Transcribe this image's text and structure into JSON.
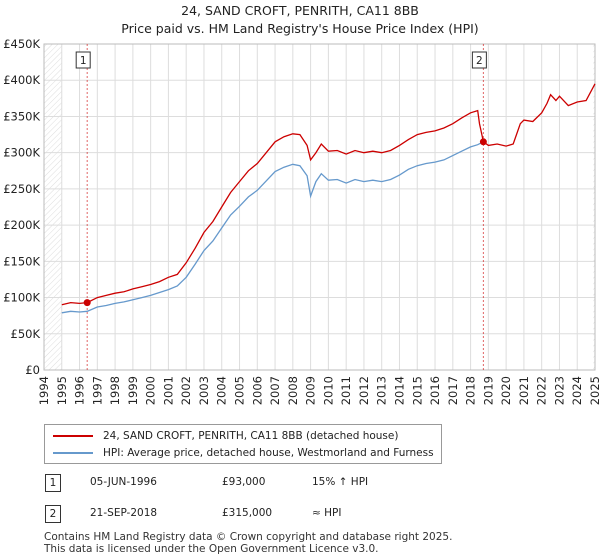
{
  "title_line1": "24, SAND CROFT, PENRITH, CA11 8BB",
  "title_line2": "Price paid vs. HM Land Registry's House Price Index (HPI)",
  "colors": {
    "property": "#cc0000",
    "hpi": "#6699cc",
    "grid": "#dddddd",
    "marker_line": "#cc0000"
  },
  "chart_data": {
    "type": "line",
    "title": "Price paid vs. HM Land Registry's House Price Index (HPI)",
    "xlabel": "",
    "ylabel": "",
    "xlim": [
      1994,
      2025
    ],
    "ylim": [
      0,
      450000
    ],
    "x_ticks": [
      1994,
      1995,
      1996,
      1997,
      1998,
      1999,
      2000,
      2001,
      2002,
      2003,
      2004,
      2005,
      2006,
      2007,
      2008,
      2009,
      2010,
      2011,
      2012,
      2013,
      2014,
      2015,
      2016,
      2017,
      2018,
      2019,
      2020,
      2021,
      2022,
      2023,
      2024,
      2025
    ],
    "y_ticks": [
      0,
      50000,
      100000,
      150000,
      200000,
      250000,
      300000,
      350000,
      400000,
      450000
    ],
    "y_tick_labels": [
      "£0",
      "£50K",
      "£100K",
      "£150K",
      "£200K",
      "£250K",
      "£300K",
      "£350K",
      "£400K",
      "£450K"
    ],
    "series": [
      {
        "name": "24, SAND CROFT, PENRITH, CA11 8BB (detached house)",
        "color": "#cc0000",
        "x": [
          1995.0,
          1995.5,
          1996.0,
          1996.43,
          1997.0,
          1997.5,
          1998.0,
          1998.5,
          1999.0,
          1999.5,
          2000.0,
          2000.5,
          2001.0,
          2001.5,
          2002.0,
          2002.5,
          2003.0,
          2003.5,
          2004.0,
          2004.5,
          2005.0,
          2005.5,
          2006.0,
          2006.5,
          2007.0,
          2007.5,
          2008.0,
          2008.4,
          2008.8,
          2009.0,
          2009.3,
          2009.6,
          2010.0,
          2010.5,
          2011.0,
          2011.5,
          2012.0,
          2012.5,
          2013.0,
          2013.5,
          2014.0,
          2014.5,
          2015.0,
          2015.5,
          2016.0,
          2016.5,
          2017.0,
          2017.5,
          2018.0,
          2018.4,
          2018.5,
          2018.72,
          2019.0,
          2019.5,
          2020.0,
          2020.4,
          2020.8,
          2021.0,
          2021.5,
          2022.0,
          2022.3,
          2022.5,
          2022.8,
          2023.0,
          2023.5,
          2024.0,
          2024.5,
          2025.0
        ],
        "y": [
          90000,
          93000,
          92000,
          93000,
          100000,
          103000,
          106000,
          108000,
          112000,
          115000,
          118000,
          122000,
          128000,
          132000,
          148000,
          168000,
          190000,
          205000,
          225000,
          245000,
          260000,
          275000,
          285000,
          300000,
          315000,
          322000,
          326000,
          325000,
          310000,
          290000,
          300000,
          312000,
          302000,
          303000,
          298000,
          303000,
          300000,
          302000,
          300000,
          303000,
          310000,
          318000,
          325000,
          328000,
          330000,
          334000,
          340000,
          348000,
          355000,
          358000,
          340000,
          315000,
          310000,
          312000,
          309000,
          312000,
          340000,
          345000,
          343000,
          355000,
          368000,
          380000,
          372000,
          378000,
          365000,
          370000,
          372000,
          395000
        ]
      },
      {
        "name": "HPI: Average price, detached house, Westmorland and Furness",
        "color": "#6699cc",
        "x": [
          1995.0,
          1995.5,
          1996.0,
          1996.43,
          1997.0,
          1997.5,
          1998.0,
          1998.5,
          1999.0,
          1999.5,
          2000.0,
          2000.5,
          2001.0,
          2001.5,
          2002.0,
          2002.5,
          2003.0,
          2003.5,
          2004.0,
          2004.5,
          2005.0,
          2005.5,
          2006.0,
          2006.5,
          2007.0,
          2007.5,
          2008.0,
          2008.4,
          2008.8,
          2009.0,
          2009.3,
          2009.6,
          2010.0,
          2010.5,
          2011.0,
          2011.5,
          2012.0,
          2012.5,
          2013.0,
          2013.5,
          2014.0,
          2014.5,
          2015.0,
          2015.5,
          2016.0,
          2016.5,
          2017.0,
          2017.5,
          2018.0,
          2018.4,
          2018.72
        ],
        "y": [
          79000,
          81000,
          80000,
          81000,
          87000,
          89000,
          92000,
          94000,
          97000,
          100000,
          103000,
          107000,
          111000,
          116000,
          128000,
          146000,
          165000,
          178000,
          196000,
          214000,
          226000,
          239000,
          248000,
          261000,
          274000,
          280000,
          284000,
          282000,
          268000,
          240000,
          260000,
          271000,
          262000,
          263000,
          258000,
          263000,
          260000,
          262000,
          260000,
          263000,
          269000,
          277000,
          282000,
          285000,
          287000,
          290000,
          296000,
          302000,
          308000,
          311000,
          315000
        ]
      }
    ],
    "sale_markers": [
      {
        "label": "1",
        "x": 1996.43,
        "y": 93000
      },
      {
        "label": "2",
        "x": 2018.72,
        "y": 315000
      }
    ]
  },
  "legend": {
    "property": "24, SAND CROFT, PENRITH, CA11 8BB (detached house)",
    "hpi": "HPI: Average price, detached house, Westmorland and Furness"
  },
  "transactions": [
    {
      "num": "1",
      "date": "05-JUN-1996",
      "price": "£93,000",
      "hpi": "15% ↑ HPI"
    },
    {
      "num": "2",
      "date": "21-SEP-2018",
      "price": "£315,000",
      "hpi": "≈ HPI"
    }
  ],
  "footer_line1": "Contains HM Land Registry data © Crown copyright and database right 2025.",
  "footer_line2": "This data is licensed under the Open Government Licence v3.0."
}
